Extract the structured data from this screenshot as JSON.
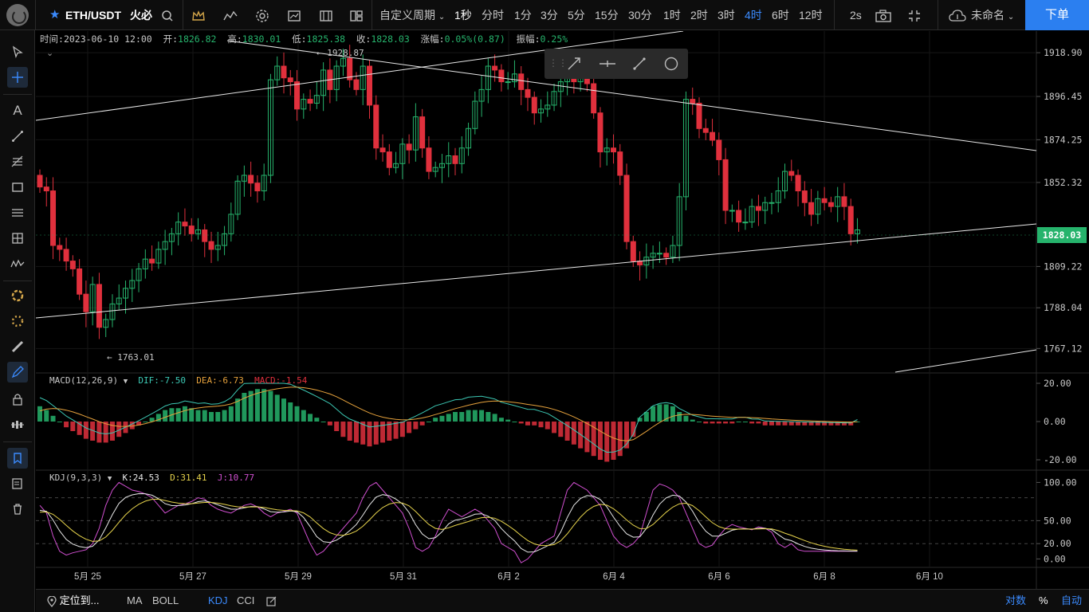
{
  "topbar": {
    "symbol": "ETH/USDT",
    "exchange": "火必",
    "custom_period": "自定义周期",
    "periods": [
      "1秒",
      "分时",
      "1分",
      "3分",
      "5分",
      "15分",
      "30分",
      "1时",
      "2时",
      "3时",
      "4时",
      "6时",
      "12时"
    ],
    "active_period": "4时",
    "refresh": "2s",
    "layout_name": "未命名",
    "order_button": "下单"
  },
  "info": {
    "time_label": "时间:",
    "time": "2023-06-10 12:00",
    "open_label": "开:",
    "open": "1826.82",
    "high_label": "高:",
    "high": "1830.01",
    "low_label": "低:",
    "low": "1825.38",
    "close_label": "收:",
    "close": "1828.03",
    "change_label": "涨幅:",
    "change": "0.05%(0.87)",
    "amp_label": "振幅:",
    "amp": "0.25%"
  },
  "price_axis": [
    "1918.90",
    "1896.45",
    "1874.25",
    "1852.32",
    "1809.22",
    "1788.04",
    "1767.12"
  ],
  "current_price": "1828.03",
  "high_marker": "← 1928.87",
  "low_marker": "← 1763.01",
  "macd": {
    "name": "MACD(12,26,9)",
    "dif": "DIF:-7.50",
    "dea": "DEA:-6.73",
    "macd": "MACD:-1.54",
    "axis": [
      "20.00",
      "0.00",
      "-20.00"
    ]
  },
  "kdj": {
    "name": "KDJ(9,3,3)",
    "k": "K:24.53",
    "d": "D:31.41",
    "j": "J:10.77",
    "axis": [
      "100.00",
      "50.00",
      "20.00",
      "0.00"
    ]
  },
  "date_axis": [
    "5月 25",
    "5月 27",
    "5月 29",
    "5月 31",
    "6月 2",
    "6月 4",
    "6月 6",
    "6月 8",
    "6月 10"
  ],
  "bottombar": {
    "locate": "定位到...",
    "ma": "MA",
    "boll": "BOLL",
    "kdj": "KDJ",
    "cci": "CCI",
    "log": "对数",
    "pct": "%",
    "auto": "自动"
  },
  "colors": {
    "up": "#26b36c",
    "down": "#e0303d",
    "accent": "#3b8bff"
  }
}
